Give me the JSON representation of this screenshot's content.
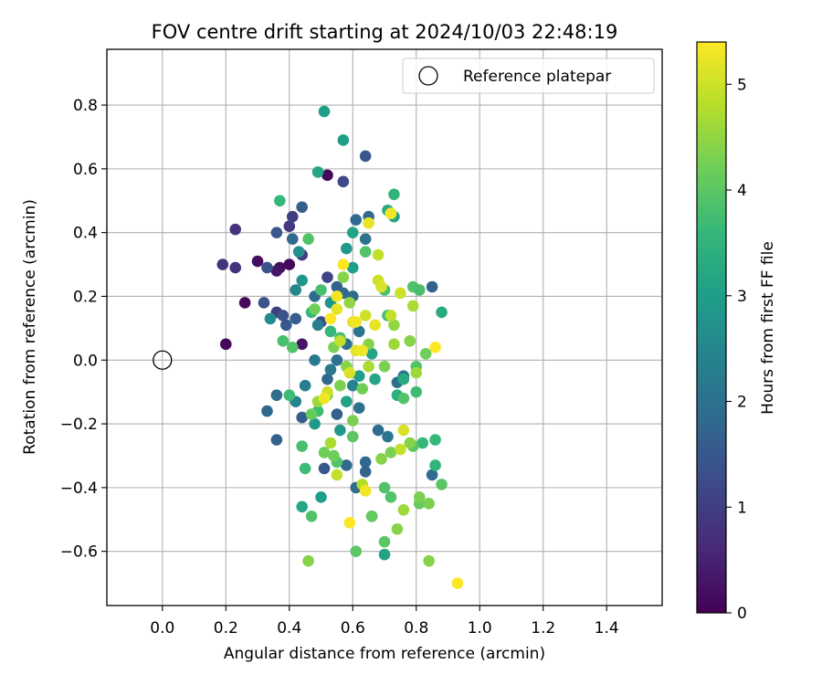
{
  "chart_data": {
    "type": "scatter",
    "title": "FOV centre drift starting at 2024/10/03 22:48:19",
    "xlabel": "Angular distance from reference (arcmin)",
    "ylabel": "Rotation from reference (arcmin)",
    "xlim": [
      -0.175,
      1.575
    ],
    "ylim": [
      -0.77,
      0.975
    ],
    "xticks": [
      "0.0",
      "0.2",
      "0.4",
      "0.6",
      "0.8",
      "1.0",
      "1.2",
      "1.4"
    ],
    "yticks": [
      "−0.6",
      "−0.4",
      "−0.2",
      "0.0",
      "0.2",
      "0.4",
      "0.6",
      "0.8"
    ],
    "grid": true,
    "legend": {
      "placement": "top-right",
      "entries": [
        "Reference platepar"
      ]
    },
    "reference_point": {
      "x": 0.0,
      "y": 0.0,
      "label": "Reference platepar"
    },
    "colorbar": {
      "label": "Hours from first FF file",
      "range": [
        0,
        5.4
      ],
      "ticks": [
        "0",
        "1",
        "2",
        "3",
        "4",
        "5"
      ],
      "colormap": "viridis",
      "colormap_stops": [
        "#440154",
        "#482878",
        "#3e4989",
        "#31688e",
        "#26828e",
        "#1f9e89",
        "#35b779",
        "#6ece58",
        "#b5de2b",
        "#fde725"
      ]
    },
    "series": [
      {
        "points": [
          {
            "x": 0.2,
            "y": 0.05,
            "t": 0.1
          },
          {
            "x": 0.26,
            "y": 0.18,
            "t": 0.1
          },
          {
            "x": 0.3,
            "y": 0.31,
            "t": 0.2
          },
          {
            "x": 0.37,
            "y": 0.29,
            "t": 0.2
          },
          {
            "x": 0.36,
            "y": 0.28,
            "t": 0.3
          },
          {
            "x": 0.4,
            "y": 0.3,
            "t": 0.1
          },
          {
            "x": 0.52,
            "y": 0.58,
            "t": 0.1
          },
          {
            "x": 0.44,
            "y": 0.05,
            "t": 0.3
          },
          {
            "x": 0.19,
            "y": 0.3,
            "t": 0.8
          },
          {
            "x": 0.23,
            "y": 0.29,
            "t": 0.8
          },
          {
            "x": 0.23,
            "y": 0.41,
            "t": 0.8
          },
          {
            "x": 0.4,
            "y": 0.42,
            "t": 0.9
          },
          {
            "x": 0.41,
            "y": 0.45,
            "t": 1.0
          },
          {
            "x": 0.44,
            "y": 0.33,
            "t": 1.0
          },
          {
            "x": 0.36,
            "y": 0.15,
            "t": 1.0
          },
          {
            "x": 0.52,
            "y": 0.26,
            "t": 1.1
          },
          {
            "x": 0.57,
            "y": 0.56,
            "t": 1.2
          },
          {
            "x": 0.64,
            "y": 0.64,
            "t": 1.5
          },
          {
            "x": 0.33,
            "y": 0.29,
            "t": 1.4
          },
          {
            "x": 0.32,
            "y": 0.18,
            "t": 1.4
          },
          {
            "x": 0.36,
            "y": 0.4,
            "t": 1.5
          },
          {
            "x": 0.38,
            "y": 0.14,
            "t": 1.4
          },
          {
            "x": 0.39,
            "y": 0.11,
            "t": 1.5
          },
          {
            "x": 0.44,
            "y": 0.48,
            "t": 1.6
          },
          {
            "x": 0.5,
            "y": 0.12,
            "t": 1.3
          },
          {
            "x": 0.41,
            "y": 0.38,
            "t": 1.8
          },
          {
            "x": 0.42,
            "y": 0.13,
            "t": 1.6
          },
          {
            "x": 0.48,
            "y": 0.2,
            "t": 1.9
          },
          {
            "x": 0.55,
            "y": 0.23,
            "t": 1.7
          },
          {
            "x": 0.57,
            "y": 0.21,
            "t": 1.8
          },
          {
            "x": 0.65,
            "y": 0.45,
            "t": 1.8
          },
          {
            "x": 0.61,
            "y": 0.44,
            "t": 1.9
          },
          {
            "x": 0.64,
            "y": 0.38,
            "t": 2.0
          },
          {
            "x": 0.6,
            "y": 0.2,
            "t": 1.9
          },
          {
            "x": 0.85,
            "y": 0.23,
            "t": 1.7
          },
          {
            "x": 0.33,
            "y": -0.16,
            "t": 1.8
          },
          {
            "x": 0.36,
            "y": -0.25,
            "t": 1.7
          },
          {
            "x": 0.36,
            "y": -0.11,
            "t": 1.9
          },
          {
            "x": 0.44,
            "y": -0.18,
            "t": 1.6
          },
          {
            "x": 0.52,
            "y": -0.06,
            "t": 1.8
          },
          {
            "x": 0.55,
            "y": -0.17,
            "t": 1.7
          },
          {
            "x": 0.51,
            "y": -0.34,
            "t": 1.5
          },
          {
            "x": 0.58,
            "y": -0.33,
            "t": 1.8
          },
          {
            "x": 0.61,
            "y": -0.4,
            "t": 1.9
          },
          {
            "x": 0.64,
            "y": -0.32,
            "t": 1.8
          },
          {
            "x": 0.64,
            "y": -0.35,
            "t": 1.7
          },
          {
            "x": 0.66,
            "y": -0.49,
            "t": 1.9
          },
          {
            "x": 0.62,
            "y": -0.15,
            "t": 2.0
          },
          {
            "x": 0.68,
            "y": -0.22,
            "t": 1.9
          },
          {
            "x": 0.71,
            "y": -0.24,
            "t": 2.1
          },
          {
            "x": 0.74,
            "y": -0.07,
            "t": 2.0
          },
          {
            "x": 0.76,
            "y": -0.05,
            "t": 2.1
          },
          {
            "x": 0.85,
            "y": -0.36,
            "t": 1.9
          },
          {
            "x": 0.58,
            "y": 0.05,
            "t": 2.0
          },
          {
            "x": 0.62,
            "y": 0.09,
            "t": 2.1
          },
          {
            "x": 0.55,
            "y": 0.0,
            "t": 2.0
          },
          {
            "x": 0.48,
            "y": 0.0,
            "t": 2.2
          },
          {
            "x": 0.45,
            "y": -0.08,
            "t": 2.3
          },
          {
            "x": 0.42,
            "y": -0.13,
            "t": 2.4
          },
          {
            "x": 0.49,
            "y": 0.11,
            "t": 2.3
          },
          {
            "x": 0.53,
            "y": -0.03,
            "t": 2.2
          },
          {
            "x": 0.6,
            "y": -0.08,
            "t": 2.4
          },
          {
            "x": 0.34,
            "y": 0.13,
            "t": 2.6
          },
          {
            "x": 0.42,
            "y": 0.22,
            "t": 2.5
          },
          {
            "x": 0.43,
            "y": 0.34,
            "t": 2.7
          },
          {
            "x": 0.44,
            "y": 0.25,
            "t": 2.8
          },
          {
            "x": 0.51,
            "y": 0.78,
            "t": 3.0
          },
          {
            "x": 0.57,
            "y": 0.69,
            "t": 3.0
          },
          {
            "x": 0.58,
            "y": 0.35,
            "t": 2.9
          },
          {
            "x": 0.6,
            "y": 0.4,
            "t": 3.1
          },
          {
            "x": 0.49,
            "y": 0.59,
            "t": 3.2
          },
          {
            "x": 0.53,
            "y": 0.18,
            "t": 2.8
          },
          {
            "x": 0.6,
            "y": 0.29,
            "t": 3.0
          },
          {
            "x": 0.66,
            "y": 0.02,
            "t": 3.1
          },
          {
            "x": 0.71,
            "y": 0.47,
            "t": 3.3
          },
          {
            "x": 0.73,
            "y": 0.45,
            "t": 3.1
          },
          {
            "x": 0.73,
            "y": 0.52,
            "t": 3.5
          },
          {
            "x": 0.88,
            "y": 0.15,
            "t": 3.3
          },
          {
            "x": 0.48,
            "y": -0.2,
            "t": 2.9
          },
          {
            "x": 0.5,
            "y": -0.43,
            "t": 3.0
          },
          {
            "x": 0.44,
            "y": -0.46,
            "t": 3.2
          },
          {
            "x": 0.56,
            "y": -0.22,
            "t": 2.9
          },
          {
            "x": 0.58,
            "y": -0.13,
            "t": 3.1
          },
          {
            "x": 0.62,
            "y": -0.05,
            "t": 3.0
          },
          {
            "x": 0.67,
            "y": -0.06,
            "t": 3.2
          },
          {
            "x": 0.7,
            "y": -0.61,
            "t": 3.1
          },
          {
            "x": 0.74,
            "y": -0.11,
            "t": 3.4
          },
          {
            "x": 0.76,
            "y": -0.06,
            "t": 3.3
          },
          {
            "x": 0.8,
            "y": -0.1,
            "t": 3.7
          },
          {
            "x": 0.82,
            "y": -0.26,
            "t": 3.6
          },
          {
            "x": 0.86,
            "y": -0.33,
            "t": 3.5
          },
          {
            "x": 0.86,
            "y": -0.25,
            "t": 3.6
          },
          {
            "x": 0.37,
            "y": 0.5,
            "t": 3.6
          },
          {
            "x": 0.38,
            "y": 0.06,
            "t": 3.8
          },
          {
            "x": 0.4,
            "y": -0.11,
            "t": 3.7
          },
          {
            "x": 0.41,
            "y": 0.04,
            "t": 3.9
          },
          {
            "x": 0.46,
            "y": 0.38,
            "t": 3.9
          },
          {
            "x": 0.47,
            "y": 0.15,
            "t": 3.6
          },
          {
            "x": 0.5,
            "y": 0.22,
            "t": 3.8
          },
          {
            "x": 0.53,
            "y": 0.09,
            "t": 3.6
          },
          {
            "x": 0.56,
            "y": 0.07,
            "t": 3.8
          },
          {
            "x": 0.64,
            "y": 0.34,
            "t": 3.9
          },
          {
            "x": 0.7,
            "y": 0.22,
            "t": 3.8
          },
          {
            "x": 0.71,
            "y": 0.14,
            "t": 3.7
          },
          {
            "x": 0.79,
            "y": 0.23,
            "t": 3.9
          },
          {
            "x": 0.81,
            "y": 0.22,
            "t": 3.8
          },
          {
            "x": 0.44,
            "y": -0.27,
            "t": 3.8
          },
          {
            "x": 0.45,
            "y": -0.34,
            "t": 3.7
          },
          {
            "x": 0.47,
            "y": -0.49,
            "t": 3.9
          },
          {
            "x": 0.49,
            "y": -0.16,
            "t": 3.7
          },
          {
            "x": 0.55,
            "y": -0.32,
            "t": 3.9
          },
          {
            "x": 0.6,
            "y": -0.24,
            "t": 4.0
          },
          {
            "x": 0.61,
            "y": -0.6,
            "t": 4.0
          },
          {
            "x": 0.66,
            "y": -0.49,
            "t": 4.1
          },
          {
            "x": 0.7,
            "y": -0.4,
            "t": 3.9
          },
          {
            "x": 0.7,
            "y": -0.57,
            "t": 4.0
          },
          {
            "x": 0.72,
            "y": -0.43,
            "t": 3.9
          },
          {
            "x": 0.76,
            "y": -0.12,
            "t": 3.9
          },
          {
            "x": 0.79,
            "y": -0.27,
            "t": 4.0
          },
          {
            "x": 0.8,
            "y": -0.02,
            "t": 3.9
          },
          {
            "x": 0.81,
            "y": -0.45,
            "t": 4.1
          },
          {
            "x": 0.88,
            "y": -0.39,
            "t": 4.0
          },
          {
            "x": 0.83,
            "y": 0.02,
            "t": 4.2
          },
          {
            "x": 0.47,
            "y": -0.17,
            "t": 4.1
          },
          {
            "x": 0.51,
            "y": -0.29,
            "t": 4.2
          },
          {
            "x": 0.52,
            "y": -0.11,
            "t": 4.3
          },
          {
            "x": 0.54,
            "y": -0.3,
            "t": 4.2
          },
          {
            "x": 0.46,
            "y": -0.63,
            "t": 4.4
          },
          {
            "x": 0.56,
            "y": -0.08,
            "t": 4.3
          },
          {
            "x": 0.58,
            "y": -0.02,
            "t": 4.4
          },
          {
            "x": 0.6,
            "y": -0.19,
            "t": 4.3
          },
          {
            "x": 0.63,
            "y": -0.09,
            "t": 4.2
          },
          {
            "x": 0.69,
            "y": -0.31,
            "t": 4.4
          },
          {
            "x": 0.72,
            "y": -0.29,
            "t": 4.3
          },
          {
            "x": 0.74,
            "y": -0.53,
            "t": 4.4
          },
          {
            "x": 0.76,
            "y": -0.47,
            "t": 4.6
          },
          {
            "x": 0.78,
            "y": -0.26,
            "t": 4.4
          },
          {
            "x": 0.81,
            "y": -0.43,
            "t": 4.3
          },
          {
            "x": 0.84,
            "y": -0.45,
            "t": 4.3
          },
          {
            "x": 0.84,
            "y": -0.63,
            "t": 4.4
          },
          {
            "x": 0.48,
            "y": 0.16,
            "t": 4.2
          },
          {
            "x": 0.54,
            "y": 0.04,
            "t": 4.3
          },
          {
            "x": 0.57,
            "y": 0.26,
            "t": 4.4
          },
          {
            "x": 0.59,
            "y": 0.18,
            "t": 4.5
          },
          {
            "x": 0.65,
            "y": 0.05,
            "t": 4.4
          },
          {
            "x": 0.7,
            "y": -0.02,
            "t": 4.3
          },
          {
            "x": 0.73,
            "y": 0.05,
            "t": 4.6
          },
          {
            "x": 0.73,
            "y": 0.11,
            "t": 4.5
          },
          {
            "x": 0.78,
            "y": 0.06,
            "t": 4.4
          },
          {
            "x": 0.79,
            "y": 0.17,
            "t": 4.7
          },
          {
            "x": 0.8,
            "y": -0.04,
            "t": 4.6
          },
          {
            "x": 0.72,
            "y": 0.46,
            "t": 4.6
          },
          {
            "x": 0.68,
            "y": 0.33,
            "t": 4.9
          },
          {
            "x": 0.53,
            "y": -0.26,
            "t": 4.7
          },
          {
            "x": 0.49,
            "y": -0.13,
            "t": 4.6
          },
          {
            "x": 0.55,
            "y": -0.36,
            "t": 4.9
          },
          {
            "x": 0.63,
            "y": -0.39,
            "t": 4.8
          },
          {
            "x": 0.65,
            "y": -0.02,
            "t": 4.7
          },
          {
            "x": 0.75,
            "y": -0.28,
            "t": 4.9
          },
          {
            "x": 0.52,
            "y": -0.1,
            "t": 5.0
          },
          {
            "x": 0.56,
            "y": 0.06,
            "t": 4.9
          },
          {
            "x": 0.59,
            "y": -0.04,
            "t": 5.1
          },
          {
            "x": 0.6,
            "y": 0.12,
            "t": 5.2
          },
          {
            "x": 0.64,
            "y": 0.14,
            "t": 5.0
          },
          {
            "x": 0.67,
            "y": 0.11,
            "t": 5.2
          },
          {
            "x": 0.68,
            "y": 0.25,
            "t": 5.0
          },
          {
            "x": 0.69,
            "y": 0.23,
            "t": 5.1
          },
          {
            "x": 0.72,
            "y": 0.14,
            "t": 4.9
          },
          {
            "x": 0.75,
            "y": 0.21,
            "t": 5.0
          },
          {
            "x": 0.76,
            "y": -0.22,
            "t": 5.1
          },
          {
            "x": 0.55,
            "y": 0.2,
            "t": 5.3
          },
          {
            "x": 0.57,
            "y": 0.3,
            "t": 5.4
          },
          {
            "x": 0.61,
            "y": 0.12,
            "t": 5.3
          },
          {
            "x": 0.61,
            "y": 0.03,
            "t": 5.2
          },
          {
            "x": 0.63,
            "y": 0.03,
            "t": 5.3
          },
          {
            "x": 0.65,
            "y": 0.43,
            "t": 5.2
          },
          {
            "x": 0.72,
            "y": 0.46,
            "t": 5.3
          },
          {
            "x": 0.55,
            "y": 0.16,
            "t": 5.2
          },
          {
            "x": 0.53,
            "y": 0.13,
            "t": 5.4
          },
          {
            "x": 0.51,
            "y": -0.12,
            "t": 5.3
          },
          {
            "x": 0.59,
            "y": -0.51,
            "t": 5.4
          },
          {
            "x": 0.64,
            "y": -0.41,
            "t": 5.3
          },
          {
            "x": 0.86,
            "y": 0.04,
            "t": 5.4
          },
          {
            "x": 0.93,
            "y": -0.7,
            "t": 5.4
          }
        ]
      }
    ]
  }
}
